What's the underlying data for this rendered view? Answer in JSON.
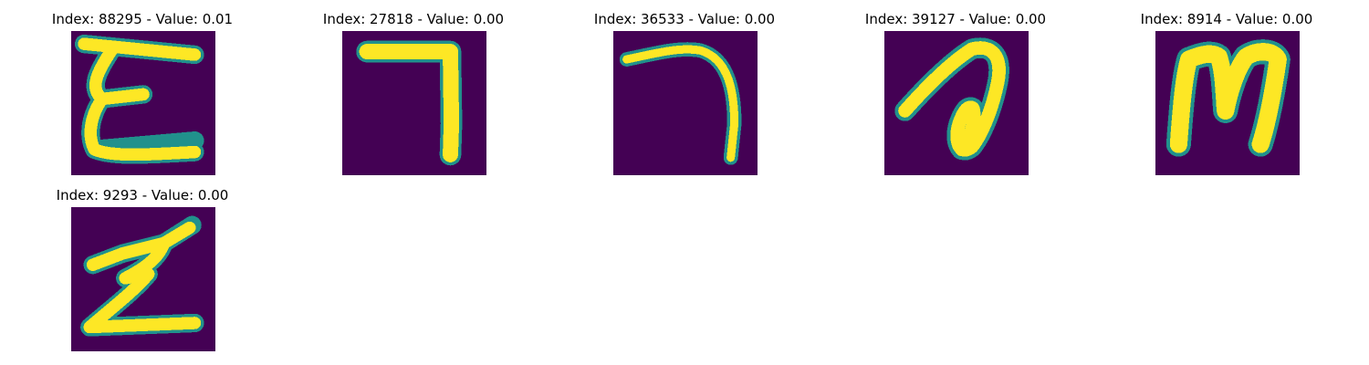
{
  "colors": {
    "background": "#440154",
    "stroke_core": "#fde725",
    "stroke_edge": "#21918c",
    "stroke_mid": "#5ec962"
  },
  "panels": [
    {
      "title": "Index: 88295 - Value: 0.01",
      "glyph": "E-shape"
    },
    {
      "title": "Index: 27818 - Value: 0.00",
      "glyph": "7-shape"
    },
    {
      "title": "Index: 36533 - Value: 0.00",
      "glyph": "hook-shape"
    },
    {
      "title": "Index: 39127 - Value: 0.00",
      "glyph": "loop-shape"
    },
    {
      "title": "Index: 8914 - Value: 0.00",
      "glyph": "m-shape"
    },
    {
      "title": "Index: 9293 - Value: 0.00",
      "glyph": "z-shape"
    }
  ]
}
